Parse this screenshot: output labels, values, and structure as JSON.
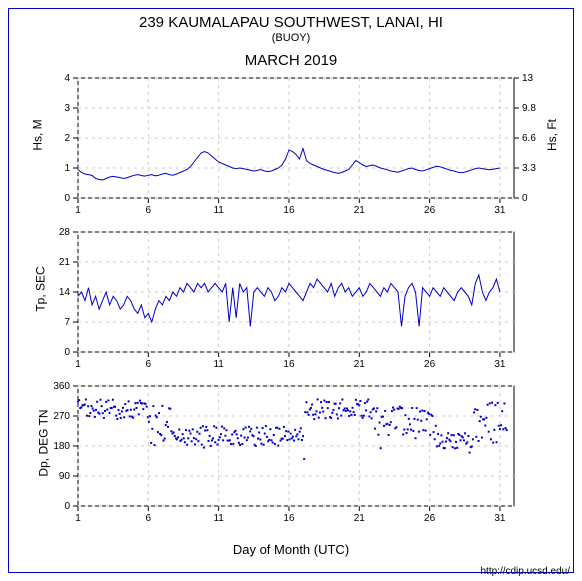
{
  "station_title": "239 KAUMALAPAU SOUTHWEST, LANAI, HI",
  "station_type": "(BUOY)",
  "month_label": "MARCH 2019",
  "xaxis_label": "Day of Month (UTC)",
  "credit": "http://cdip.ucsd.edu/",
  "colors": {
    "frame": "#0000cc",
    "series": "#0000cc",
    "grid": "#cccccc",
    "axis": "#000000",
    "background": "#ffffff"
  },
  "xaxis": {
    "min": 1,
    "max": 32,
    "ticks": [
      1,
      6,
      11,
      16,
      21,
      26,
      31
    ]
  },
  "panel1": {
    "ylabel_left": "Hs, M",
    "ylabel_right": "Hs, Ft",
    "ylim": [
      0,
      4
    ],
    "yticks_left": [
      0,
      1,
      2,
      3,
      4
    ],
    "yticks_right": [
      0,
      3.3,
      6.6,
      9.8,
      13
    ],
    "type": "line",
    "data": [
      0.95,
      0.85,
      0.8,
      0.78,
      0.75,
      0.65,
      0.62,
      0.6,
      0.65,
      0.7,
      0.72,
      0.7,
      0.68,
      0.65,
      0.68,
      0.72,
      0.76,
      0.78,
      0.75,
      0.73,
      0.76,
      0.78,
      0.74,
      0.76,
      0.8,
      0.82,
      0.78,
      0.76,
      0.8,
      0.85,
      0.9,
      0.95,
      1.05,
      1.2,
      1.35,
      1.5,
      1.55,
      1.5,
      1.4,
      1.3,
      1.2,
      1.15,
      1.1,
      1.05,
      1.0,
      0.98,
      1.0,
      0.98,
      0.95,
      0.93,
      0.9,
      0.92,
      0.95,
      0.9,
      0.88,
      0.9,
      0.95,
      1.0,
      1.1,
      1.3,
      1.6,
      1.55,
      1.45,
      1.3,
      1.65,
      1.25,
      1.15,
      1.1,
      1.05,
      1.0,
      0.95,
      0.92,
      0.88,
      0.85,
      0.82,
      0.85,
      0.9,
      0.95,
      1.1,
      1.25,
      1.18,
      1.1,
      1.05,
      1.08,
      1.1,
      1.05,
      1.0,
      0.97,
      0.94,
      0.9,
      0.88,
      0.86,
      0.9,
      0.94,
      0.98,
      1.0,
      0.95,
      0.92,
      0.9,
      0.94,
      0.98,
      1.02,
      1.06,
      1.04,
      1.0,
      0.96,
      0.92,
      0.9,
      0.86,
      0.84,
      0.86,
      0.9,
      0.94,
      0.98,
      1.0,
      0.98,
      0.96,
      0.94,
      0.96,
      0.98,
      1.0
    ]
  },
  "panel2": {
    "ylabel": "Tp, SEC",
    "ylim": [
      0,
      28
    ],
    "yticks": [
      0,
      7,
      14,
      21,
      28
    ],
    "type": "line",
    "data": [
      13,
      14,
      12,
      15,
      11,
      13,
      10,
      12,
      14,
      11,
      13,
      12,
      10,
      11,
      13,
      12,
      10,
      9,
      11,
      8,
      9,
      7,
      10,
      12,
      11,
      13,
      12,
      14,
      13,
      15,
      14,
      16,
      15,
      14,
      16,
      15,
      16,
      14,
      15,
      16,
      15,
      14,
      16,
      7,
      15,
      8,
      16,
      14,
      15,
      6,
      14,
      15,
      14,
      13,
      15,
      14,
      12,
      13,
      15,
      14,
      16,
      15,
      14,
      13,
      12,
      14,
      16,
      15,
      17,
      16,
      15,
      14,
      16,
      13,
      15,
      16,
      14,
      15,
      13,
      14,
      15,
      13,
      14,
      16,
      15,
      14,
      13,
      15,
      14,
      16,
      15,
      14,
      6,
      13,
      15,
      16,
      14,
      6,
      15,
      14,
      13,
      15,
      14,
      13,
      15,
      14,
      13,
      12,
      14,
      15,
      14,
      13,
      11,
      16,
      18,
      14,
      12,
      14,
      15,
      17,
      14
    ]
  },
  "panel3": {
    "ylabel": "Dp, DEG TN",
    "ylim": [
      0,
      360
    ],
    "yticks": [
      0,
      90,
      180,
      270,
      360
    ],
    "type": "scatter",
    "data": []
  }
}
